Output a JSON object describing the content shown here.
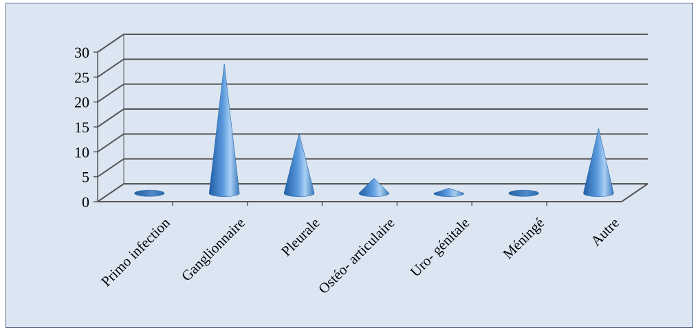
{
  "chart_data": {
    "type": "bar",
    "bar_shape": "cone",
    "style": "3d",
    "categories": [
      "Primo infection",
      "Ganglionnaire",
      "Pleurale",
      "Ostéo- articulaire",
      "Uro- génitale",
      "Méningé",
      "Autre"
    ],
    "values": [
      0,
      26,
      12,
      3,
      1,
      0,
      13
    ],
    "ylim": [
      0,
      30
    ],
    "yticks": [
      "0",
      "5",
      "10",
      "15",
      "20",
      "25",
      "30"
    ],
    "grid": true,
    "legend": "none",
    "title": "",
    "xlabel": "",
    "ylabel": ""
  },
  "colors": {
    "background": "#dce6f2",
    "cone_dark": "#2f6fb4",
    "cone_light": "#9cc6ee",
    "grid": "#555555",
    "border": "#5b6d86"
  }
}
